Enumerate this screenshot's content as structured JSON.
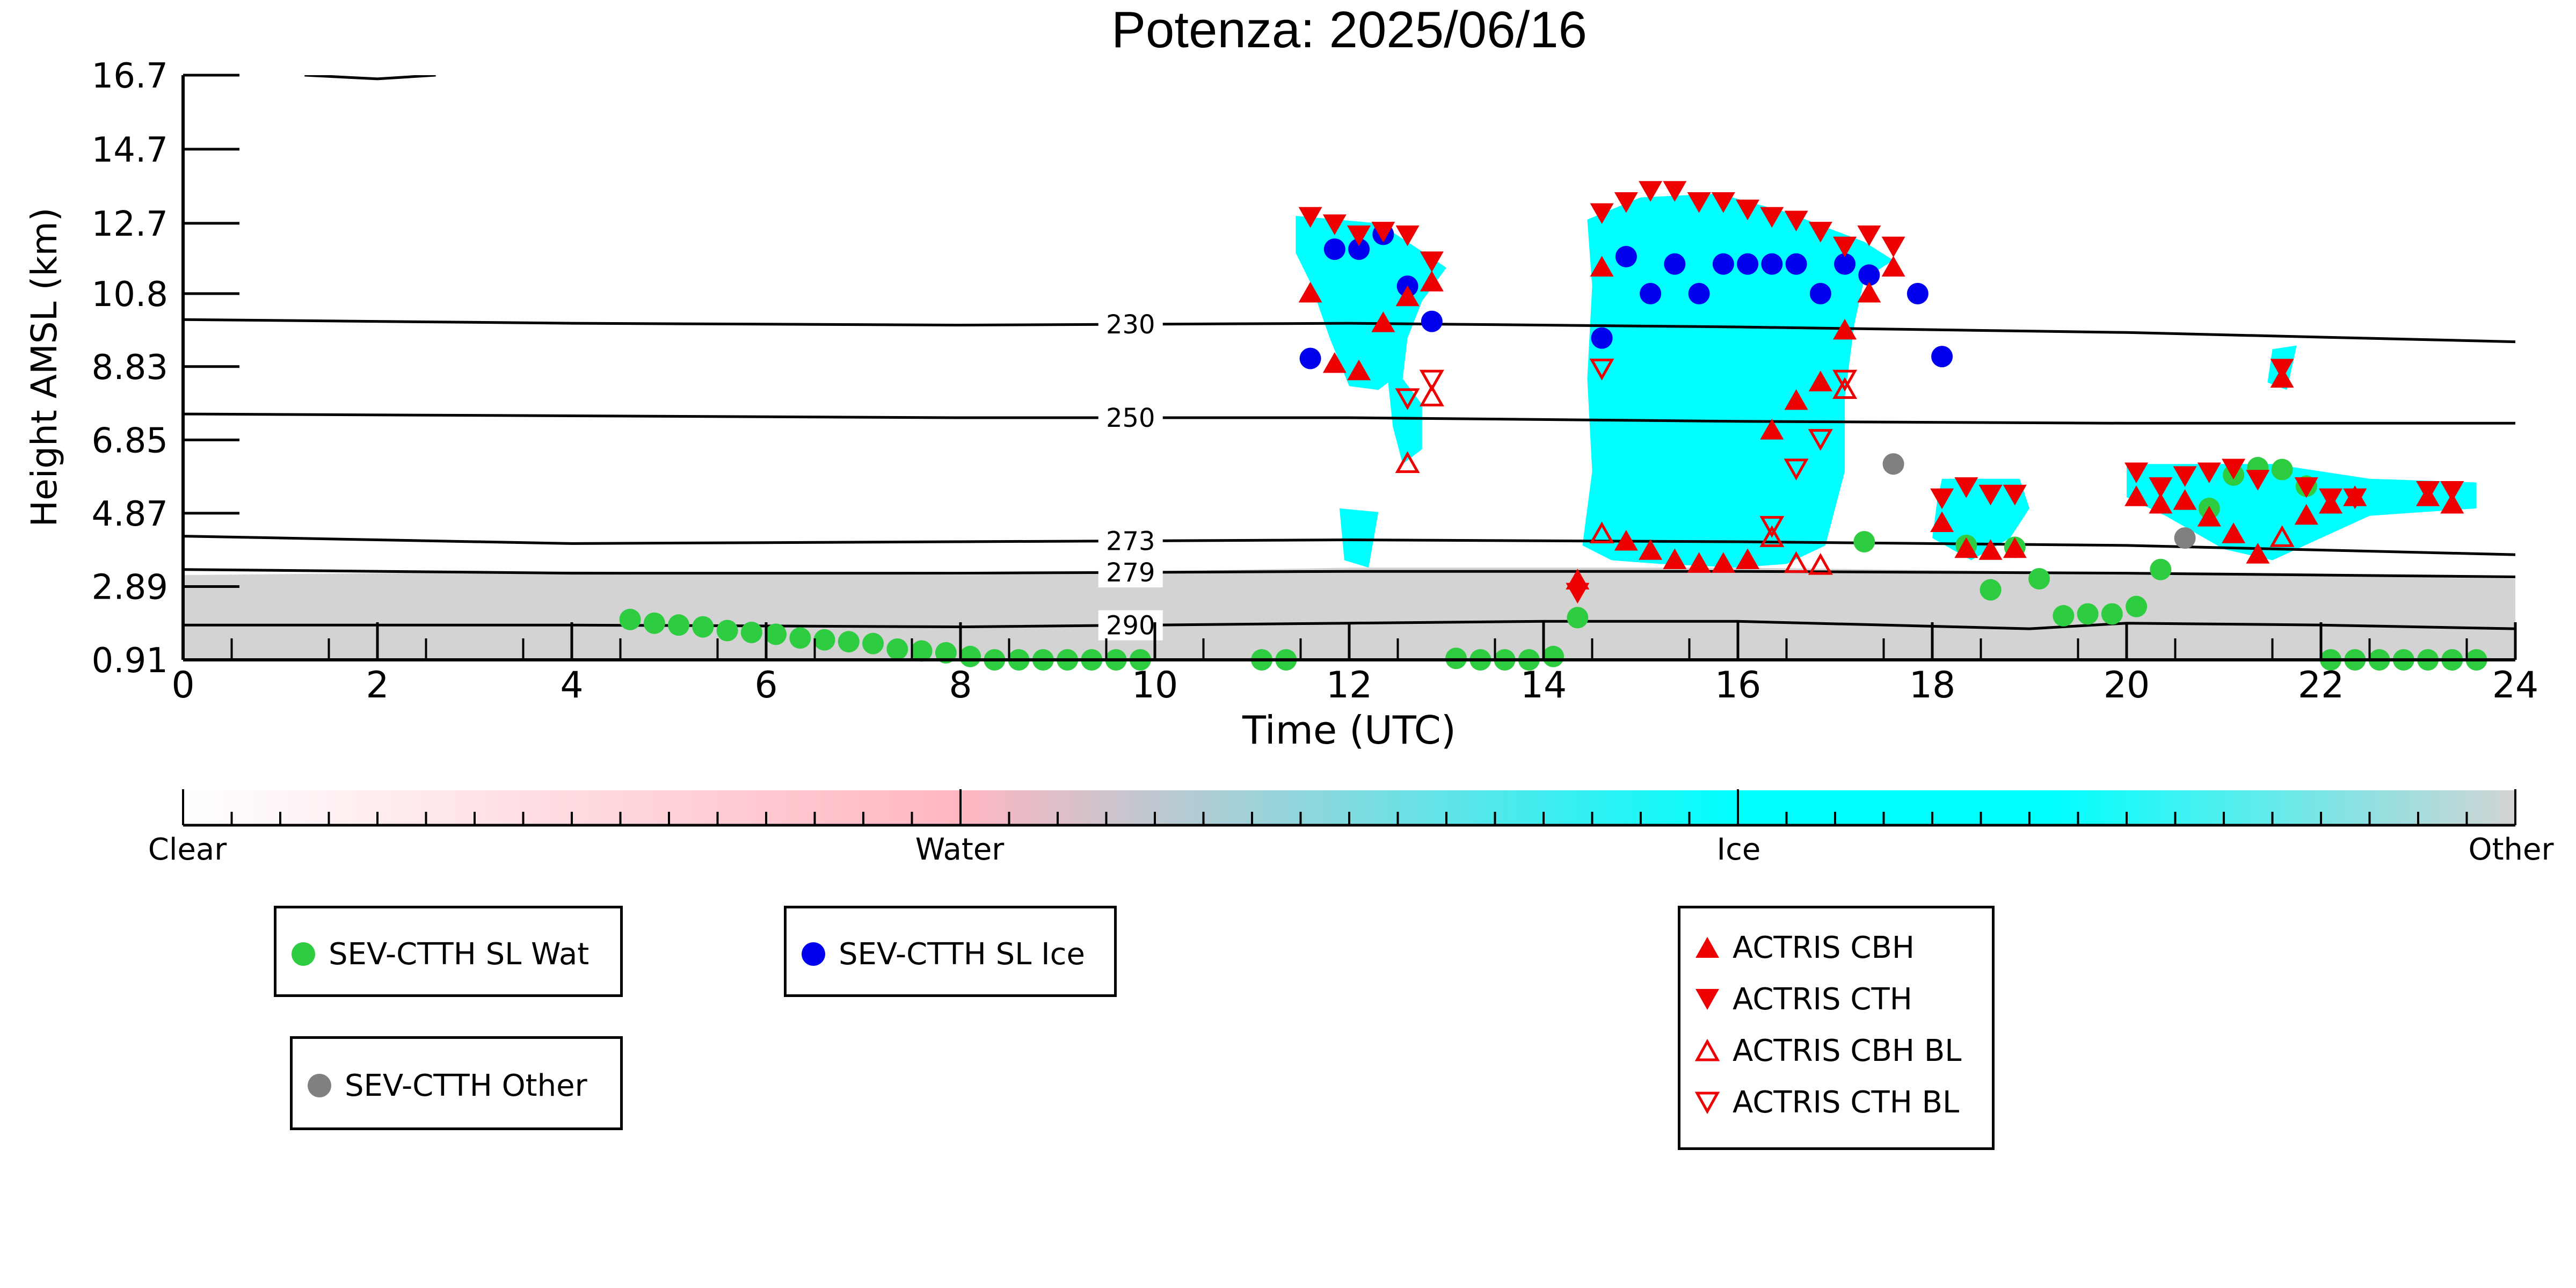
{
  "chart_data": {
    "type": "scatter",
    "title": "Potenza: 2025/06/16",
    "xlabel": "Time (UTC)",
    "ylabel": "Height AMSL (km)",
    "xlim": [
      0,
      24
    ],
    "ylim": [
      0.91,
      16.7
    ],
    "x_ticks": [
      "0",
      "2",
      "4",
      "6",
      "8",
      "10",
      "12",
      "14",
      "16",
      "18",
      "20",
      "22",
      "24"
    ],
    "y_ticks": [
      "0.91",
      "2.89",
      "4.87",
      "6.85",
      "8.83",
      "10.8",
      "12.7",
      "14.7",
      "16.7"
    ],
    "background": "cloud-type classification image (Clear / Water / Ice / Other)",
    "isotherms": [
      {
        "label": "230",
        "label_x": 9.75,
        "points": [
          [
            0,
            10.1
          ],
          [
            4,
            10.0
          ],
          [
            8,
            9.95
          ],
          [
            12,
            10.0
          ],
          [
            16,
            9.9
          ],
          [
            20,
            9.75
          ],
          [
            24,
            9.5
          ]
        ]
      },
      {
        "label": "250",
        "label_x": 9.75,
        "points": [
          [
            0,
            7.55
          ],
          [
            4,
            7.5
          ],
          [
            8,
            7.45
          ],
          [
            12,
            7.45
          ],
          [
            16,
            7.35
          ],
          [
            20,
            7.3
          ],
          [
            24,
            7.3
          ]
        ]
      },
      {
        "label": "273",
        "label_x": 9.75,
        "points": [
          [
            0,
            4.25
          ],
          [
            4,
            4.05
          ],
          [
            8,
            4.1
          ],
          [
            12,
            4.15
          ],
          [
            16,
            4.1
          ],
          [
            20,
            4.0
          ],
          [
            24,
            3.75
          ]
        ]
      },
      {
        "label": "279",
        "label_x": 9.75,
        "points": [
          [
            0,
            3.35
          ],
          [
            4,
            3.25
          ],
          [
            8,
            3.25
          ],
          [
            12,
            3.3
          ],
          [
            16,
            3.3
          ],
          [
            20,
            3.25
          ],
          [
            24,
            3.15
          ]
        ]
      },
      {
        "label": "290",
        "label_x": 9.75,
        "points": [
          [
            0,
            1.85
          ],
          [
            4,
            1.85
          ],
          [
            8,
            1.8
          ],
          [
            12,
            1.9
          ],
          [
            14,
            1.95
          ],
          [
            16,
            1.95
          ],
          [
            19,
            1.75
          ],
          [
            20,
            1.9
          ],
          [
            22,
            1.85
          ],
          [
            24,
            1.75
          ]
        ]
      },
      {
        "label": "",
        "label_x": null,
        "points": [
          [
            1.25,
            16.7
          ],
          [
            2.0,
            16.6
          ],
          [
            2.6,
            16.7
          ]
        ]
      }
    ],
    "clouds": [
      {
        "class": "Ice",
        "polygon": [
          [
            11.45,
            12.9
          ],
          [
            12.3,
            12.7
          ],
          [
            12.6,
            12.2
          ],
          [
            13.0,
            11.5
          ],
          [
            12.75,
            10.6
          ],
          [
            12.6,
            9.6
          ],
          [
            12.55,
            8.5
          ],
          [
            12.75,
            7.8
          ],
          [
            12.75,
            6.6
          ],
          [
            12.55,
            6.2
          ],
          [
            12.45,
            7.2
          ],
          [
            12.4,
            8.4
          ],
          [
            12.3,
            8.2
          ],
          [
            12.0,
            8.3
          ],
          [
            11.8,
            9.6
          ],
          [
            11.6,
            11.1
          ],
          [
            11.45,
            11.9
          ]
        ]
      },
      {
        "class": "Ice",
        "polygon": [
          [
            14.45,
            12.8
          ],
          [
            15.0,
            13.4
          ],
          [
            15.8,
            13.5
          ],
          [
            16.5,
            13.0
          ],
          [
            17.0,
            12.5
          ],
          [
            17.3,
            12.2
          ],
          [
            17.6,
            11.7
          ],
          [
            17.3,
            11.2
          ],
          [
            17.2,
            10.0
          ],
          [
            17.1,
            8.0
          ],
          [
            17.1,
            6.0
          ],
          [
            16.9,
            4.0
          ],
          [
            16.5,
            3.5
          ],
          [
            16.0,
            3.4
          ],
          [
            15.2,
            3.5
          ],
          [
            14.7,
            3.6
          ],
          [
            14.4,
            4.0
          ],
          [
            14.5,
            6.0
          ],
          [
            14.45,
            8.5
          ],
          [
            14.5,
            11.0
          ]
        ]
      },
      {
        "class": "Ice",
        "polygon": [
          [
            18.1,
            5.8
          ],
          [
            18.9,
            5.8
          ],
          [
            19.0,
            5.0
          ],
          [
            18.8,
            4.2
          ],
          [
            18.4,
            3.6
          ],
          [
            18.0,
            4.2
          ],
          [
            18.05,
            5.2
          ]
        ]
      },
      {
        "class": "Ice",
        "polygon": [
          [
            20.0,
            6.2
          ],
          [
            21.5,
            6.2
          ],
          [
            22.5,
            5.8
          ],
          [
            23.6,
            5.7
          ],
          [
            23.6,
            5.0
          ],
          [
            22.5,
            4.8
          ],
          [
            21.5,
            3.6
          ],
          [
            21.0,
            3.9
          ],
          [
            20.4,
            4.8
          ],
          [
            20.0,
            5.3
          ]
        ]
      },
      {
        "class": "Ice",
        "polygon": [
          [
            21.5,
            9.3
          ],
          [
            21.75,
            9.4
          ],
          [
            21.65,
            8.2
          ],
          [
            21.45,
            8.4
          ]
        ]
      },
      {
        "class": "Ice",
        "polygon": [
          [
            11.9,
            5.0
          ],
          [
            12.3,
            4.9
          ],
          [
            12.2,
            3.4
          ],
          [
            11.95,
            3.6
          ]
        ]
      },
      {
        "class": "Other",
        "polygon": [
          [
            0,
            3.2
          ],
          [
            4,
            3.3
          ],
          [
            8,
            3.2
          ],
          [
            12,
            3.4
          ],
          [
            16,
            3.4
          ],
          [
            19,
            3.3
          ],
          [
            24,
            3.1
          ],
          [
            24,
            0.91
          ],
          [
            0,
            0.91
          ]
        ]
      }
    ],
    "series": [
      {
        "name": "SEV-CTTH SL Wat",
        "marker": "filled-circle",
        "color": "#2ecc40",
        "points": [
          [
            4.6,
            2.0
          ],
          [
            4.85,
            1.9
          ],
          [
            5.1,
            1.85
          ],
          [
            5.35,
            1.8
          ],
          [
            5.6,
            1.7
          ],
          [
            5.85,
            1.65
          ],
          [
            6.1,
            1.6
          ],
          [
            6.35,
            1.5
          ],
          [
            6.6,
            1.45
          ],
          [
            6.85,
            1.4
          ],
          [
            7.1,
            1.35
          ],
          [
            7.35,
            1.2
          ],
          [
            7.6,
            1.15
          ],
          [
            7.85,
            1.1
          ],
          [
            8.1,
            1.0
          ],
          [
            8.35,
            0.91
          ],
          [
            8.6,
            0.91
          ],
          [
            8.85,
            0.91
          ],
          [
            9.1,
            0.91
          ],
          [
            9.35,
            0.91
          ],
          [
            9.6,
            0.91
          ],
          [
            9.85,
            0.91
          ],
          [
            11.1,
            0.91
          ],
          [
            11.35,
            0.91
          ],
          [
            13.1,
            0.95
          ],
          [
            13.35,
            0.91
          ],
          [
            13.6,
            0.91
          ],
          [
            13.85,
            0.91
          ],
          [
            14.1,
            1.0
          ],
          [
            14.35,
            2.05
          ],
          [
            17.3,
            4.1
          ],
          [
            18.35,
            4.0
          ],
          [
            18.6,
            2.8
          ],
          [
            18.85,
            3.95
          ],
          [
            19.1,
            3.1
          ],
          [
            19.35,
            2.1
          ],
          [
            19.6,
            2.15
          ],
          [
            19.85,
            2.15
          ],
          [
            20.1,
            2.35
          ],
          [
            20.35,
            3.35
          ],
          [
            20.85,
            5.0
          ],
          [
            21.1,
            5.9
          ],
          [
            21.35,
            6.1
          ],
          [
            21.6,
            6.05
          ],
          [
            21.85,
            5.6
          ],
          [
            22.1,
            0.91
          ],
          [
            22.35,
            0.91
          ],
          [
            22.6,
            0.91
          ],
          [
            22.85,
            0.91
          ],
          [
            23.1,
            0.91
          ],
          [
            23.35,
            0.91
          ],
          [
            23.6,
            0.91
          ]
        ]
      },
      {
        "name": "SEV-CTTH SL Ice",
        "marker": "filled-circle",
        "color": "#0000ee",
        "points": [
          [
            11.6,
            9.05
          ],
          [
            11.85,
            12.0
          ],
          [
            12.1,
            12.0
          ],
          [
            12.35,
            12.4
          ],
          [
            12.6,
            11.0
          ],
          [
            12.85,
            10.05
          ],
          [
            14.6,
            9.6
          ],
          [
            14.85,
            11.8
          ],
          [
            15.1,
            10.8
          ],
          [
            15.35,
            11.6
          ],
          [
            15.6,
            10.8
          ],
          [
            15.85,
            11.6
          ],
          [
            16.1,
            11.6
          ],
          [
            16.35,
            11.6
          ],
          [
            16.6,
            11.6
          ],
          [
            16.85,
            10.8
          ],
          [
            17.1,
            11.6
          ],
          [
            17.35,
            11.3
          ],
          [
            17.85,
            10.8
          ],
          [
            18.1,
            9.1
          ]
        ]
      },
      {
        "name": "SEV-CTTH Other",
        "marker": "filled-circle",
        "color": "#808080",
        "points": [
          [
            17.6,
            6.2
          ],
          [
            20.6,
            4.2
          ]
        ]
      },
      {
        "name": "ACTRIS CBH",
        "marker": "filled-triangle-up",
        "color": "#ee0000",
        "points": [
          [
            11.6,
            10.8
          ],
          [
            11.85,
            8.9
          ],
          [
            12.1,
            8.7
          ],
          [
            12.35,
            10.0
          ],
          [
            12.6,
            10.7
          ],
          [
            12.85,
            11.1
          ],
          [
            14.35,
            3.05
          ],
          [
            14.6,
            11.5
          ],
          [
            14.85,
            4.1
          ],
          [
            15.1,
            3.85
          ],
          [
            15.35,
            3.6
          ],
          [
            15.6,
            3.5
          ],
          [
            15.85,
            3.5
          ],
          [
            16.1,
            3.6
          ],
          [
            16.35,
            7.1
          ],
          [
            16.6,
            7.9
          ],
          [
            16.85,
            8.4
          ],
          [
            17.1,
            9.8
          ],
          [
            17.35,
            10.8
          ],
          [
            17.6,
            11.5
          ],
          [
            18.1,
            4.6
          ],
          [
            18.35,
            3.9
          ],
          [
            18.6,
            3.85
          ],
          [
            18.85,
            3.9
          ],
          [
            20.1,
            5.3
          ],
          [
            20.35,
            5.1
          ],
          [
            20.6,
            5.2
          ],
          [
            20.85,
            4.75
          ],
          [
            21.1,
            4.3
          ],
          [
            21.35,
            3.75
          ],
          [
            21.6,
            8.5
          ],
          [
            21.85,
            4.8
          ],
          [
            22.1,
            5.1
          ],
          [
            22.35,
            5.3
          ],
          [
            23.1,
            5.3
          ],
          [
            23.35,
            5.1
          ]
        ]
      },
      {
        "name": "ACTRIS CTH",
        "marker": "filled-triangle-down",
        "color": "#ee0000",
        "points": [
          [
            11.6,
            12.9
          ],
          [
            11.85,
            12.7
          ],
          [
            12.1,
            12.4
          ],
          [
            12.35,
            12.5
          ],
          [
            12.6,
            12.4
          ],
          [
            12.85,
            11.7
          ],
          [
            14.35,
            2.75
          ],
          [
            14.6,
            13.0
          ],
          [
            14.85,
            13.3
          ],
          [
            15.1,
            13.6
          ],
          [
            15.35,
            13.6
          ],
          [
            15.6,
            13.3
          ],
          [
            15.85,
            13.3
          ],
          [
            16.1,
            13.1
          ],
          [
            16.35,
            12.9
          ],
          [
            16.6,
            12.8
          ],
          [
            16.85,
            12.5
          ],
          [
            17.1,
            12.1
          ],
          [
            17.35,
            12.4
          ],
          [
            17.6,
            12.1
          ],
          [
            18.1,
            5.3
          ],
          [
            18.35,
            5.6
          ],
          [
            18.6,
            5.4
          ],
          [
            18.85,
            5.4
          ],
          [
            20.1,
            6.0
          ],
          [
            20.35,
            5.6
          ],
          [
            20.6,
            5.9
          ],
          [
            20.85,
            6.0
          ],
          [
            21.1,
            6.1
          ],
          [
            21.35,
            5.8
          ],
          [
            21.6,
            8.8
          ],
          [
            21.85,
            5.6
          ],
          [
            22.1,
            5.3
          ],
          [
            22.35,
            5.3
          ],
          [
            23.1,
            5.5
          ],
          [
            23.35,
            5.5
          ]
        ]
      },
      {
        "name": "ACTRIS CBH BL",
        "marker": "open-triangle-up",
        "color": "#ee0000",
        "points": [
          [
            12.6,
            6.2
          ],
          [
            12.85,
            8.0
          ],
          [
            14.6,
            4.3
          ],
          [
            16.35,
            4.2
          ],
          [
            16.6,
            3.5
          ],
          [
            16.85,
            3.45
          ],
          [
            17.1,
            8.2
          ],
          [
            21.6,
            4.2
          ]
        ]
      },
      {
        "name": "ACTRIS CTH BL",
        "marker": "open-triangle-down",
        "color": "#ee0000",
        "points": [
          [
            12.6,
            8.0
          ],
          [
            12.85,
            8.5
          ],
          [
            14.6,
            8.8
          ],
          [
            16.35,
            4.55
          ],
          [
            16.6,
            6.1
          ],
          [
            16.85,
            6.9
          ],
          [
            17.1,
            8.5
          ]
        ]
      }
    ],
    "colorbar": {
      "labels": [
        {
          "text": "Clear",
          "pos": 0.0
        },
        {
          "text": "Water",
          "pos": 0.333
        },
        {
          "text": "Ice",
          "pos": 0.667
        },
        {
          "text": "Other",
          "pos": 1.0
        }
      ],
      "colors": {
        "Clear": "#ffffff",
        "Water": "#ffb6c1",
        "Ice": "#00ffff",
        "Other": "#d3d3d3"
      }
    },
    "legends": [
      {
        "entries": [
          "SEV-CTTH SL Wat"
        ]
      },
      {
        "entries": [
          "SEV-CTTH SL Ice"
        ]
      },
      {
        "entries": [
          "SEV-CTTH Other"
        ]
      },
      {
        "entries": [
          "ACTRIS CBH",
          "ACTRIS CTH",
          "ACTRIS CBH BL",
          "ACTRIS CTH BL"
        ]
      }
    ],
    "grid": false
  }
}
